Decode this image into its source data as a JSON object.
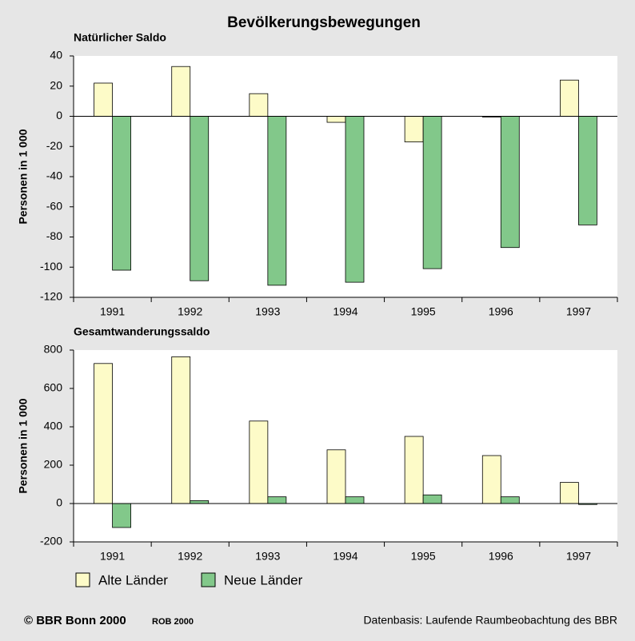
{
  "title": "Bevölkerungsbewegungen",
  "chart_data": [
    {
      "type": "bar",
      "subtitle": "Natürlicher Saldo",
      "y_label": "Personen in 1 000",
      "categories": [
        "1991",
        "1992",
        "1993",
        "1994",
        "1995",
        "1996",
        "1997"
      ],
      "series": [
        {
          "name": "Alte Länder",
          "color": "#fdfbc8",
          "values": [
            22,
            33,
            15,
            -4,
            -17,
            -0.5,
            24
          ]
        },
        {
          "name": "Neue Länder",
          "color": "#82c88a",
          "values": [
            -102,
            -109,
            -112,
            -110,
            -101,
            -87,
            -72
          ]
        }
      ],
      "ylim": [
        -120,
        40
      ],
      "yticks": [
        40,
        20,
        0,
        -20,
        -40,
        -60,
        -80,
        -100,
        -120
      ]
    },
    {
      "type": "bar",
      "subtitle": "Gesamtwanderungssaldo",
      "y_label": "Personen in 1 000",
      "categories": [
        "1991",
        "1992",
        "1993",
        "1994",
        "1995",
        "1996",
        "1997"
      ],
      "series": [
        {
          "color": "#fdfbc8",
          "values": [
            730,
            765,
            430,
            280,
            350,
            250,
            110
          ]
        },
        {
          "color": "#82c88a",
          "values": [
            -125,
            15,
            35,
            35,
            45,
            35,
            -5
          ]
        }
      ],
      "ylim": [
        -200,
        800
      ],
      "yticks": [
        800,
        600,
        400,
        200,
        0,
        -200
      ]
    }
  ],
  "footer": {
    "copyright": "© BBR Bonn 2000",
    "code": "ROB 2000",
    "source": "Datenbasis: Laufende Raumbeobachtung des BBR"
  }
}
